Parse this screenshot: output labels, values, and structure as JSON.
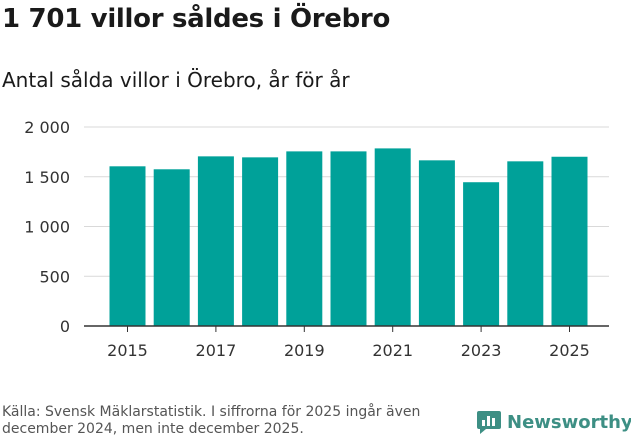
{
  "title": "1 701 villor såldes i Örebro",
  "subtitle": "Antal sålda villor i Örebro, år för år",
  "source": "Källa: Svensk Mäklarstatistik. I siffrorna för 2025 ingår även december 2024, men inte december 2025.",
  "brand": {
    "name": "Newsworthy",
    "color": "#3d8f84"
  },
  "colors": {
    "bar": "#00a199",
    "grid": "#d9d9d9",
    "axis": "#333333",
    "text": "#333333"
  },
  "chart_data": {
    "type": "bar",
    "title": "Antal sålda villor i Örebro, år för år",
    "xlabel": "",
    "ylabel": "",
    "categories": [
      "2015",
      "2016",
      "2017",
      "2018",
      "2019",
      "2020",
      "2021",
      "2022",
      "2023",
      "2024",
      "2025"
    ],
    "values": [
      1605,
      1575,
      1705,
      1695,
      1755,
      1755,
      1785,
      1665,
      1445,
      1655,
      1701
    ],
    "x_tick_labels": [
      "2015",
      "2017",
      "2019",
      "2021",
      "2023",
      "2025"
    ],
    "y_ticks": [
      0,
      500,
      1000,
      1500,
      2000
    ],
    "y_tick_labels": [
      "0",
      "500",
      "1 000",
      "1 500",
      "2 000"
    ],
    "ylim": [
      0,
      2000
    ],
    "grid": true
  }
}
